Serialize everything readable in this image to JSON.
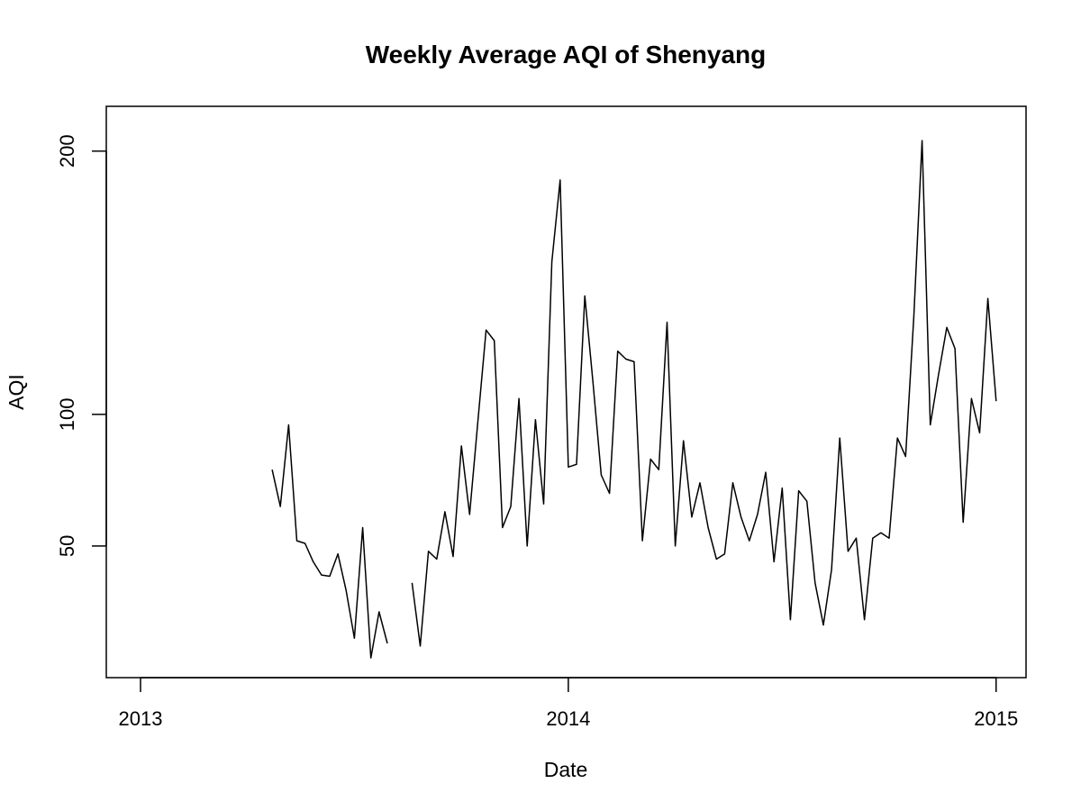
{
  "chart_data": {
    "type": "line",
    "title": "Weekly Average AQI of Shenyang",
    "xlabel": "Date",
    "ylabel": "AQI",
    "xlim": [
      2012.92,
      2015.07
    ],
    "ylim": [
      0,
      217
    ],
    "x_ticks": [
      {
        "value": 2013,
        "label": "2013"
      },
      {
        "value": 2014,
        "label": "2014"
      },
      {
        "value": 2015,
        "label": "2015"
      }
    ],
    "y_ticks": [
      {
        "value": 50,
        "label": "50"
      },
      {
        "value": 100,
        "label": "100"
      },
      {
        "value": 200,
        "label": "200"
      }
    ],
    "grid": false,
    "series": [
      {
        "name": "AQI",
        "x": [
          2013.3077,
          2013.3269,
          2013.3462,
          2013.3654,
          2013.3846,
          2013.4038,
          2013.4231,
          2013.4423,
          2013.4615,
          2013.4808,
          2013.5,
          2013.5192,
          2013.5385,
          2013.5577,
          2013.5769,
          2013.5962,
          2013.6154,
          2013.6346,
          2013.6538,
          2013.6731,
          2013.6923,
          2013.7115,
          2013.7308,
          2013.75,
          2013.7692,
          2013.7885,
          2013.8077,
          2013.8269,
          2013.8462,
          2013.8654,
          2013.8846,
          2013.9038,
          2013.9231,
          2013.9423,
          2013.9615,
          2013.9808,
          2014.0,
          2014.0192,
          2014.0385,
          2014.0577,
          2014.0769,
          2014.0962,
          2014.1154,
          2014.1346,
          2014.1538,
          2014.1731,
          2014.1923,
          2014.2115,
          2014.2308,
          2014.25,
          2014.2692,
          2014.2885,
          2014.3077,
          2014.3269,
          2014.3462,
          2014.3654,
          2014.3846,
          2014.4038,
          2014.4231,
          2014.4423,
          2014.4615,
          2014.4808,
          2014.5,
          2014.5192,
          2014.5385,
          2014.5577,
          2014.5769,
          2014.5962,
          2014.6154,
          2014.6346,
          2014.6538,
          2014.6731,
          2014.6923,
          2014.7115,
          2014.7308,
          2014.75,
          2014.7692,
          2014.7885,
          2014.8077,
          2014.8269,
          2014.8462,
          2014.8654,
          2014.8846,
          2014.9038,
          2014.9231,
          2014.9423,
          2014.9615,
          2014.9808,
          2015.0
        ],
        "values": [
          79,
          65,
          96,
          52,
          51,
          44,
          39,
          38.5,
          47,
          33,
          15,
          57,
          7.5,
          25,
          13,
          null,
          null,
          36,
          12,
          48,
          45,
          63,
          46,
          88,
          62,
          97,
          132,
          128,
          57,
          65,
          106,
          50,
          98,
          66,
          158,
          189,
          80,
          81,
          145,
          112,
          77,
          70,
          124,
          121,
          120,
          52,
          83,
          79,
          135,
          50,
          90,
          61,
          74,
          57,
          45,
          47,
          74,
          61,
          52,
          62,
          78,
          44,
          72,
          22,
          71,
          67,
          36,
          20,
          41,
          91,
          48,
          53,
          22,
          53,
          55,
          53,
          91,
          84,
          137,
          204,
          96,
          115,
          133,
          125,
          59,
          106,
          93,
          144,
          105
        ]
      }
    ]
  }
}
